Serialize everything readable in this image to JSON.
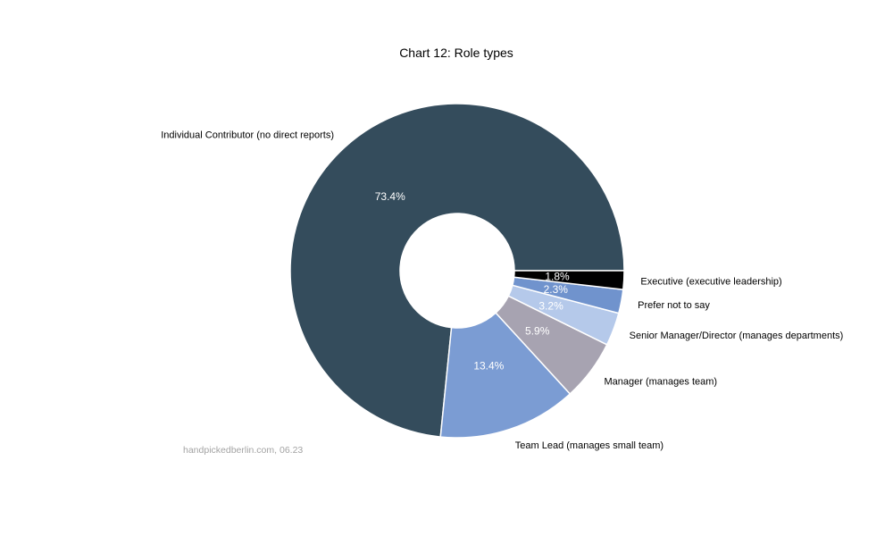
{
  "title": "Chart 12: Role types",
  "footer": "handpickedberlin.com, 06.23",
  "chart_data": {
    "type": "pie",
    "subtype": "donut",
    "title": "Chart 12: Role types",
    "labels": [
      "Individual Contributor (no direct reports)",
      "Team Lead (manages small team)",
      "Manager (manages team)",
      "Senior Manager/Director (manages departments)",
      "Prefer not to say",
      "Executive (executive leadership)"
    ],
    "values": [
      73.4,
      13.4,
      5.9,
      3.2,
      2.3,
      1.8
    ],
    "pct_labels": [
      "73.4%",
      "13.4%",
      "5.9%",
      "3.2%",
      "2.3%",
      "1.8%"
    ],
    "colors": [
      "#344c5c",
      "#7b9cd3",
      "#a7a3b1",
      "#b5c9ea",
      "#7093cd",
      "#000000"
    ],
    "slice_border_color": "#ffffff",
    "pct_label_color": "#ffffff",
    "start_angle_deg": 0,
    "counterclockwise": true,
    "inner_radius_ratio": 0.342,
    "legend_position": "none",
    "labels_position": "outside"
  }
}
